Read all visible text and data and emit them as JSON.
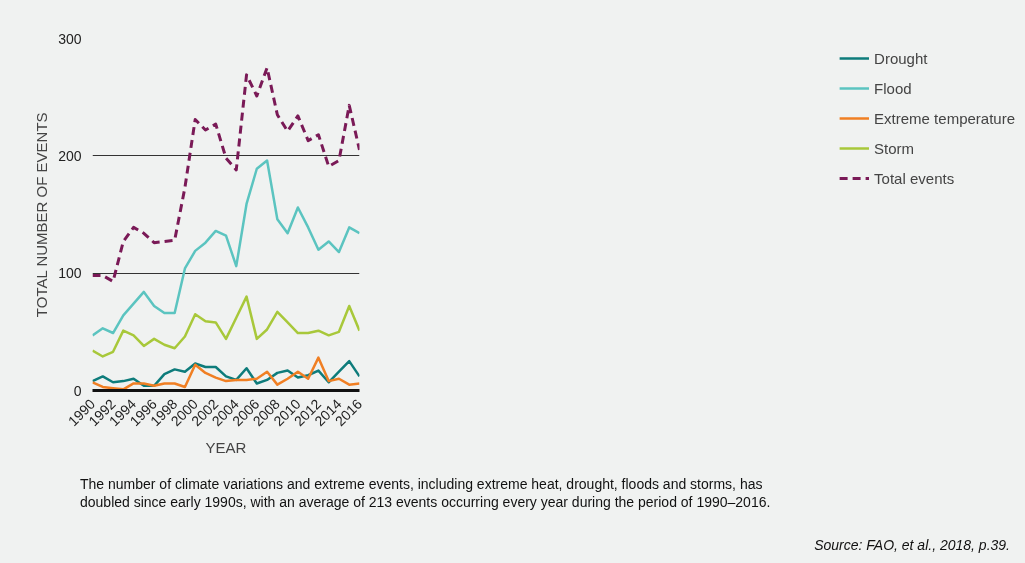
{
  "chart_data": {
    "type": "line",
    "xlabel": "YEAR",
    "ylabel": "TOTAL NUMBER OF EVENTS",
    "x": [
      1990,
      1991,
      1992,
      1993,
      1994,
      1995,
      1996,
      1997,
      1998,
      1999,
      2000,
      2001,
      2002,
      2003,
      2004,
      2005,
      2006,
      2007,
      2008,
      2009,
      2010,
      2011,
      2012,
      2013,
      2014,
      2015,
      2016
    ],
    "xlim": [
      1990,
      2016
    ],
    "xticks": [
      1990,
      1992,
      1994,
      1996,
      1998,
      2000,
      2002,
      2004,
      2006,
      2008,
      2010,
      2012,
      2014,
      2016
    ],
    "ylim": [
      0,
      300
    ],
    "yticks": [
      0,
      100,
      200,
      300
    ],
    "grid": "y",
    "legend": "right",
    "marker": "none",
    "series": [
      {
        "name": "Drought",
        "color": "#0e7c7b",
        "line_style": "solid",
        "values": [
          8,
          12,
          7,
          8,
          10,
          4,
          4,
          14,
          18,
          16,
          23,
          20,
          20,
          12,
          9,
          19,
          6,
          9,
          15,
          17,
          11,
          13,
          17,
          7,
          16,
          25,
          12
        ]
      },
      {
        "name": "Flood",
        "color": "#5bc4c0",
        "line_style": "solid",
        "values": [
          47,
          53,
          49,
          64,
          74,
          84,
          72,
          66,
          66,
          104,
          119,
          126,
          136,
          132,
          106,
          159,
          189,
          196,
          146,
          134,
          156,
          139,
          120,
          127,
          118,
          139,
          134
        ]
      },
      {
        "name": "Extreme temperature",
        "color": "#f07f23",
        "line_style": "solid",
        "values": [
          7,
          3,
          2,
          1,
          6,
          6,
          4,
          6,
          6,
          3,
          22,
          15,
          11,
          8,
          9,
          9,
          10,
          16,
          5,
          10,
          16,
          10,
          28,
          8,
          10,
          5,
          6
        ]
      },
      {
        "name": "Storm",
        "color": "#a8c83a",
        "line_style": "solid",
        "values": [
          34,
          29,
          33,
          51,
          47,
          38,
          44,
          39,
          36,
          46,
          65,
          59,
          58,
          44,
          62,
          80,
          44,
          52,
          67,
          58,
          49,
          49,
          51,
          47,
          50,
          72,
          51
        ]
      },
      {
        "name": "Total events",
        "color": "#7a1a57",
        "line_style": "dashed",
        "values": [
          98,
          98,
          93,
          127,
          139,
          134,
          126,
          127,
          128,
          173,
          231,
          222,
          227,
          198,
          188,
          269,
          251,
          275,
          235,
          221,
          234,
          213,
          218,
          191,
          196,
          243,
          205
        ]
      }
    ],
    "annotations": [
      "The number of climate variations and extreme events, including extreme heat, drought, floods and storms, has doubled since early 1990s, with an average of 213 events occurring every year during the period of 1990–2016.",
      "Source: FAO, et al., 2018, p.39."
    ]
  }
}
